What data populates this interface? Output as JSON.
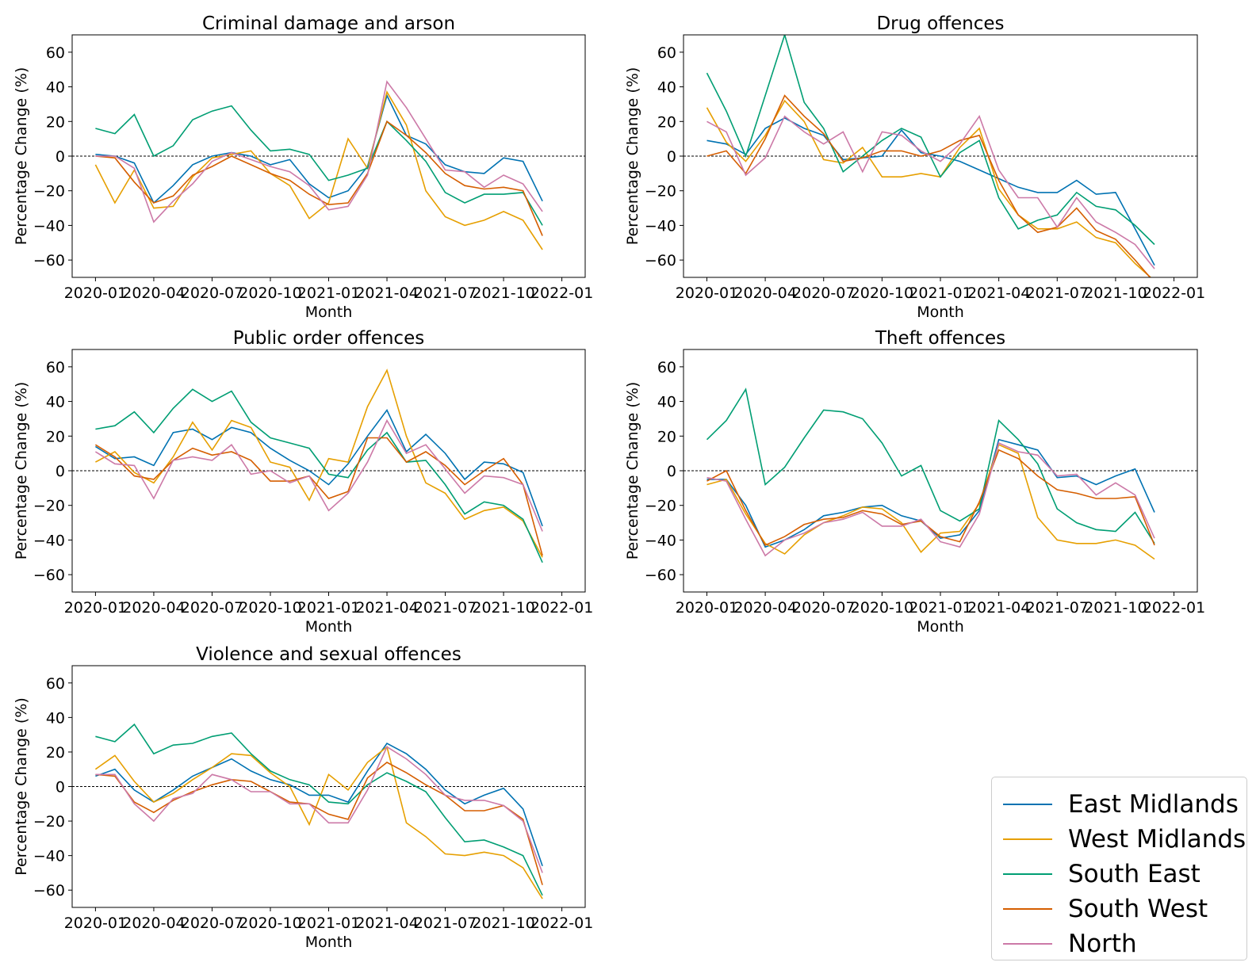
{
  "colors": {
    "East Midlands": "#0072b2",
    "West Midlands": "#e69f00",
    "South East": "#009e73",
    "South West": "#d55e00",
    "North": "#cc79a7"
  },
  "legend": [
    "East Midlands",
    "West Midlands",
    "South East",
    "South West",
    "North"
  ],
  "chart_data": [
    {
      "type": "line",
      "title": "Criminal damage and arson",
      "xlabel": "Month",
      "ylabel": "Percentage Change (%)",
      "ylim": [
        -70,
        70
      ],
      "yticks": [
        -60,
        -40,
        -20,
        0,
        20,
        40,
        60
      ],
      "xticks": [
        "2020-01",
        "2020-04",
        "2020-07",
        "2020-10",
        "2021-01",
        "2021-04",
        "2021-07",
        "2021-10",
        "2022-01"
      ],
      "reference_line": 0,
      "x": [
        "2020-01",
        "2020-02",
        "2020-03",
        "2020-04",
        "2020-05",
        "2020-06",
        "2020-07",
        "2020-08",
        "2020-09",
        "2020-10",
        "2020-11",
        "2020-12",
        "2021-01",
        "2021-02",
        "2021-03",
        "2021-04",
        "2021-05",
        "2021-06",
        "2021-07",
        "2021-08",
        "2021-09",
        "2021-10",
        "2021-11",
        "2021-12"
      ],
      "series": [
        {
          "name": "East Midlands",
          "values": [
            1,
            0,
            -4,
            -27,
            -17,
            -5,
            0,
            2,
            0,
            -5,
            -2,
            -16,
            -24,
            -20,
            -6,
            35,
            12,
            7,
            -5,
            -9,
            -10,
            -1,
            -3,
            -26
          ]
        },
        {
          "name": "West Midlands",
          "values": [
            -5,
            -27,
            -8,
            -30,
            -29,
            -12,
            -1,
            1,
            3,
            -10,
            -17,
            -36,
            -27,
            10,
            -7,
            37,
            18,
            -20,
            -35,
            -40,
            -37,
            -32,
            -37,
            -54
          ]
        },
        {
          "name": "South East",
          "values": [
            16,
            13,
            24,
            0,
            6,
            21,
            26,
            29,
            15,
            3,
            4,
            1,
            -14,
            -11,
            -7,
            20,
            9,
            -3,
            -21,
            -27,
            -22,
            -22,
            -21,
            -40
          ]
        },
        {
          "name": "South West",
          "values": [
            0,
            -1,
            -15,
            -27,
            -23,
            -11,
            -6,
            0,
            -5,
            -10,
            -14,
            -22,
            -28,
            -27,
            -10,
            20,
            12,
            2,
            -10,
            -17,
            -19,
            -18,
            -20,
            -46
          ]
        },
        {
          "name": "North",
          "values": [
            0,
            0,
            -7,
            -38,
            -26,
            -16,
            -3,
            2,
            -2,
            -6,
            -9,
            -17,
            -31,
            -29,
            -11,
            43,
            28,
            10,
            -8,
            -9,
            -18,
            -11,
            -16,
            -32
          ]
        }
      ]
    },
    {
      "type": "line",
      "title": "Drug offences",
      "xlabel": "Month",
      "ylabel": "Percentage Change (%)",
      "ylim": [
        -70,
        70
      ],
      "yticks": [
        -60,
        -40,
        -20,
        0,
        20,
        40,
        60
      ],
      "xticks": [
        "2020-01",
        "2020-04",
        "2020-07",
        "2020-10",
        "2021-01",
        "2021-04",
        "2021-07",
        "2021-10",
        "2022-01"
      ],
      "reference_line": 0,
      "x": [
        "2020-01",
        "2020-02",
        "2020-03",
        "2020-04",
        "2020-05",
        "2020-06",
        "2020-07",
        "2020-08",
        "2020-09",
        "2020-10",
        "2020-11",
        "2020-12",
        "2021-01",
        "2021-02",
        "2021-03",
        "2021-04",
        "2021-05",
        "2021-06",
        "2021-07",
        "2021-08",
        "2021-09",
        "2021-10",
        "2021-11",
        "2021-12"
      ],
      "series": [
        {
          "name": "East Midlands",
          "values": [
            9,
            7,
            1,
            16,
            22,
            16,
            12,
            -2,
            -1,
            0,
            15,
            2,
            0,
            -3,
            -8,
            -13,
            -18,
            -21,
            -21,
            -14,
            -22,
            -21,
            -42,
            -63
          ]
        },
        {
          "name": "West Midlands",
          "values": [
            28,
            8,
            -3,
            12,
            32,
            20,
            -2,
            -4,
            5,
            -12,
            -12,
            -10,
            -12,
            5,
            16,
            -19,
            -34,
            -42,
            -42,
            -38,
            -47,
            -50,
            -62,
            -72
          ]
        },
        {
          "name": "South East",
          "values": [
            48,
            26,
            0,
            35,
            70,
            31,
            16,
            -9,
            0,
            9,
            16,
            11,
            -12,
            2,
            9,
            -24,
            -42,
            -37,
            -34,
            -21,
            -29,
            -31,
            -40,
            -51
          ]
        },
        {
          "name": "South West",
          "values": [
            0,
            3,
            -10,
            10,
            35,
            23,
            13,
            -3,
            -1,
            3,
            3,
            0,
            3,
            9,
            12,
            -14,
            -34,
            -44,
            -41,
            -30,
            -43,
            -48,
            -60,
            -73
          ]
        },
        {
          "name": "North",
          "values": [
            20,
            14,
            -11,
            -1,
            23,
            14,
            7,
            14,
            -9,
            14,
            12,
            3,
            -3,
            7,
            23,
            -8,
            -24,
            -24,
            -41,
            -24,
            -38,
            -44,
            -51,
            -65
          ]
        }
      ]
    },
    {
      "type": "line",
      "title": "Public order offences",
      "xlabel": "Month",
      "ylabel": "Percentage Change (%)",
      "ylim": [
        -70,
        70
      ],
      "yticks": [
        -60,
        -40,
        -20,
        0,
        20,
        40,
        60
      ],
      "xticks": [
        "2020-01",
        "2020-04",
        "2020-07",
        "2020-10",
        "2021-01",
        "2021-04",
        "2021-07",
        "2021-10",
        "2022-01"
      ],
      "reference_line": 0,
      "x": [
        "2020-01",
        "2020-02",
        "2020-03",
        "2020-04",
        "2020-05",
        "2020-06",
        "2020-07",
        "2020-08",
        "2020-09",
        "2020-10",
        "2020-11",
        "2020-12",
        "2021-01",
        "2021-02",
        "2021-03",
        "2021-04",
        "2021-05",
        "2021-06",
        "2021-07",
        "2021-08",
        "2021-09",
        "2021-10",
        "2021-11",
        "2021-12"
      ],
      "series": [
        {
          "name": "East Midlands",
          "values": [
            14,
            7,
            8,
            3,
            22,
            24,
            18,
            25,
            22,
            13,
            6,
            0,
            -8,
            4,
            20,
            35,
            11,
            21,
            10,
            -5,
            5,
            4,
            -1,
            -32
          ]
        },
        {
          "name": "West Midlands",
          "values": [
            5,
            11,
            -1,
            -7,
            8,
            28,
            12,
            29,
            25,
            5,
            2,
            -17,
            7,
            5,
            37,
            58,
            20,
            -7,
            -13,
            -28,
            -23,
            -21,
            -29,
            -50
          ]
        },
        {
          "name": "South East",
          "values": [
            24,
            26,
            34,
            22,
            36,
            47,
            40,
            46,
            28,
            19,
            16,
            13,
            -2,
            -4,
            12,
            22,
            5,
            6,
            -8,
            -25,
            -18,
            -20,
            -28,
            -53
          ]
        },
        {
          "name": "South West",
          "values": [
            15,
            8,
            -3,
            -5,
            6,
            13,
            9,
            11,
            6,
            -6,
            -6,
            -3,
            -16,
            -12,
            19,
            19,
            5,
            11,
            3,
            -8,
            0,
            7,
            -8,
            -49
          ]
        },
        {
          "name": "North",
          "values": [
            11,
            4,
            3,
            -16,
            6,
            8,
            6,
            15,
            -2,
            0,
            -7,
            -3,
            -23,
            -13,
            5,
            29,
            10,
            15,
            1,
            -13,
            -3,
            -4,
            -8,
            -35
          ]
        }
      ]
    },
    {
      "type": "line",
      "title": "Theft offences",
      "xlabel": "Month",
      "ylabel": "Percentage Change (%)",
      "ylim": [
        -70,
        70
      ],
      "yticks": [
        -60,
        -40,
        -20,
        0,
        20,
        40,
        60
      ],
      "xticks": [
        "2020-01",
        "2020-04",
        "2020-07",
        "2020-10",
        "2021-01",
        "2021-04",
        "2021-07",
        "2021-10",
        "2022-01"
      ],
      "reference_line": 0,
      "x": [
        "2020-01",
        "2020-02",
        "2020-03",
        "2020-04",
        "2020-05",
        "2020-06",
        "2020-07",
        "2020-08",
        "2020-09",
        "2020-10",
        "2020-11",
        "2020-12",
        "2021-01",
        "2021-02",
        "2021-03",
        "2021-04",
        "2021-05",
        "2021-06",
        "2021-07",
        "2021-08",
        "2021-09",
        "2021-10",
        "2021-11",
        "2021-12"
      ],
      "series": [
        {
          "name": "East Midlands",
          "values": [
            -5,
            -5,
            -20,
            -44,
            -40,
            -34,
            -26,
            -24,
            -21,
            -20,
            -26,
            -29,
            -39,
            -37,
            -23,
            18,
            15,
            12,
            -4,
            -3,
            -8,
            -3,
            1,
            -24
          ]
        },
        {
          "name": "West Midlands",
          "values": [
            -8,
            -5,
            -25,
            -42,
            -48,
            -37,
            -30,
            -26,
            -21,
            -22,
            -30,
            -47,
            -36,
            -35,
            -19,
            15,
            10,
            -27,
            -40,
            -42,
            -42,
            -40,
            -43,
            -51
          ]
        },
        {
          "name": "South East",
          "values": [
            18,
            29,
            47,
            -8,
            2,
            19,
            35,
            34,
            30,
            16,
            -3,
            3,
            -23,
            -29,
            -22,
            29,
            18,
            4,
            -22,
            -30,
            -34,
            -35,
            -24,
            -42
          ]
        },
        {
          "name": "South West",
          "values": [
            -6,
            0,
            -23,
            -43,
            -38,
            -31,
            -28,
            -27,
            -23,
            -25,
            -31,
            -29,
            -38,
            -41,
            -18,
            12,
            7,
            -3,
            -11,
            -13,
            -16,
            -16,
            -15,
            -43
          ]
        },
        {
          "name": "North",
          "values": [
            -4,
            -6,
            -28,
            -49,
            -40,
            -36,
            -30,
            -28,
            -24,
            -32,
            -32,
            -28,
            -41,
            -44,
            -25,
            16,
            11,
            9,
            -3,
            -2,
            -14,
            -7,
            -14,
            -39
          ]
        }
      ]
    },
    {
      "type": "line",
      "title": "Violence and sexual offences",
      "xlabel": "Month",
      "ylabel": "Percentage Change (%)",
      "ylim": [
        -70,
        70
      ],
      "yticks": [
        -60,
        -40,
        -20,
        0,
        20,
        40,
        60
      ],
      "xticks": [
        "2020-01",
        "2020-04",
        "2020-07",
        "2020-10",
        "2021-01",
        "2021-04",
        "2021-07",
        "2021-10",
        "2022-01"
      ],
      "reference_line": 0,
      "x": [
        "2020-01",
        "2020-02",
        "2020-03",
        "2020-04",
        "2020-05",
        "2020-06",
        "2020-07",
        "2020-08",
        "2020-09",
        "2020-10",
        "2020-11",
        "2020-12",
        "2021-01",
        "2021-02",
        "2021-03",
        "2021-04",
        "2021-05",
        "2021-06",
        "2021-07",
        "2021-08",
        "2021-09",
        "2021-10",
        "2021-11",
        "2021-12"
      ],
      "series": [
        {
          "name": "East Midlands",
          "values": [
            6,
            10,
            -2,
            -9,
            -2,
            6,
            11,
            16,
            9,
            4,
            1,
            -5,
            -5,
            -9,
            9,
            25,
            19,
            10,
            -2,
            -10,
            -5,
            -1,
            -13,
            -46
          ]
        },
        {
          "name": "West Midlands",
          "values": [
            10,
            18,
            3,
            -9,
            -4,
            4,
            11,
            19,
            18,
            8,
            0,
            -22,
            7,
            -2,
            14,
            23,
            -21,
            -29,
            -39,
            -40,
            -38,
            -40,
            -47,
            -65
          ]
        },
        {
          "name": "South East",
          "values": [
            29,
            26,
            36,
            19,
            24,
            25,
            29,
            31,
            19,
            9,
            4,
            1,
            -9,
            -10,
            1,
            8,
            3,
            -3,
            -18,
            -32,
            -31,
            -35,
            -40,
            -63
          ]
        },
        {
          "name": "South West",
          "values": [
            7,
            6,
            -9,
            -15,
            -8,
            -3,
            1,
            4,
            3,
            -3,
            -9,
            -10,
            -16,
            -19,
            5,
            14,
            8,
            1,
            -5,
            -14,
            -14,
            -11,
            -19,
            -57
          ]
        },
        {
          "name": "North",
          "values": [
            7,
            7,
            -10,
            -20,
            -7,
            -4,
            7,
            4,
            -3,
            -3,
            -10,
            -10,
            -21,
            -21,
            -2,
            23,
            16,
            7,
            -5,
            -8,
            -8,
            -11,
            -20,
            -50
          ]
        }
      ]
    }
  ]
}
